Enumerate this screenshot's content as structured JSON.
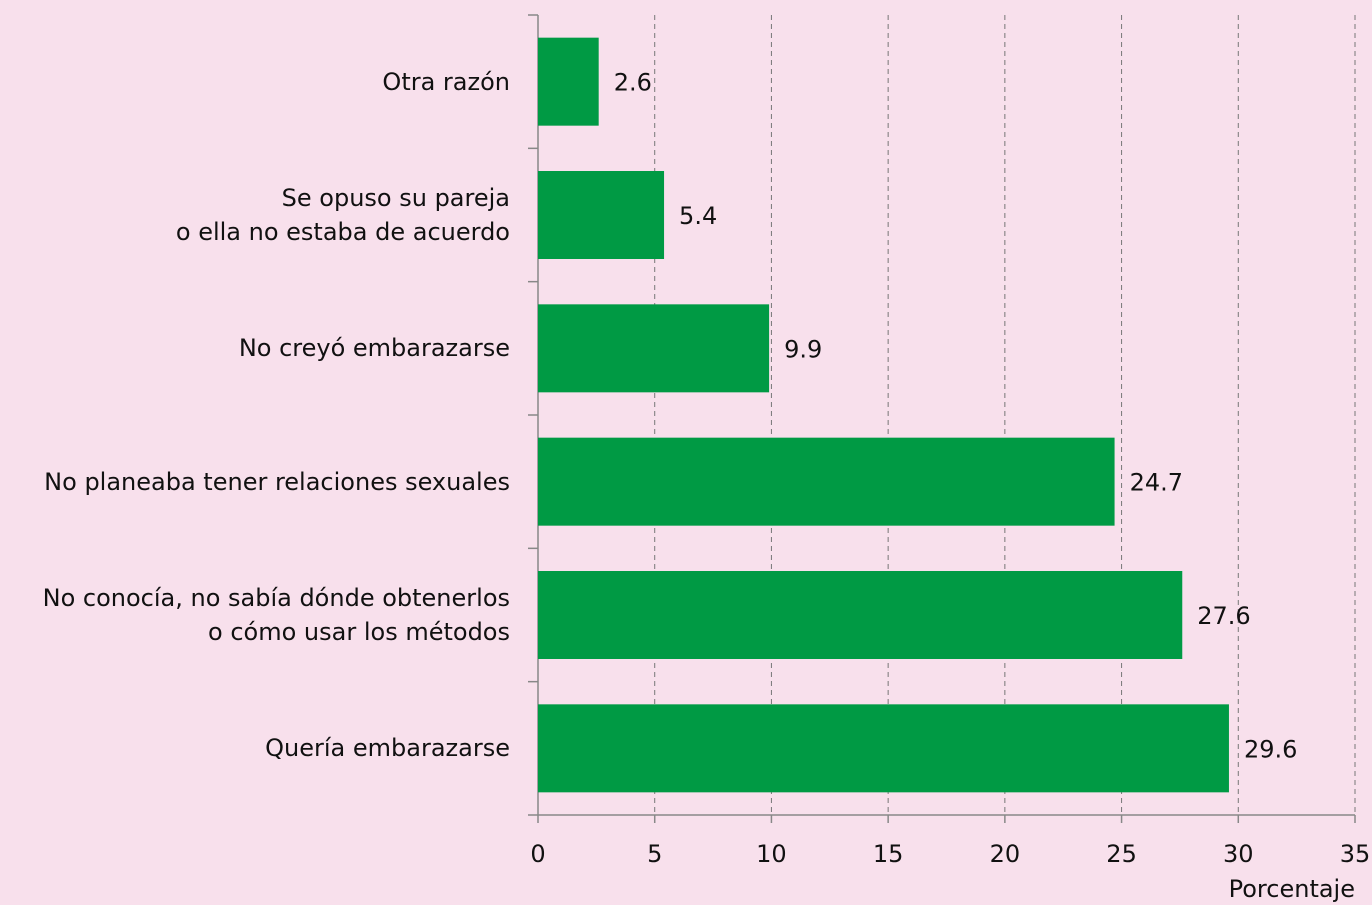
{
  "chart_data": {
    "type": "barh",
    "categories": [
      "Otra razón",
      "Se opuso su pareja\no ella no estaba de acuerdo",
      "No creyó embarazarse",
      "No planeaba tener relaciones sexuales",
      "No conocía, no sabía dónde obtenerlos\no cómo usar los métodos",
      "Quería embarazarse"
    ],
    "values": [
      2.6,
      5.4,
      9.9,
      24.7,
      27.6,
      29.6
    ],
    "color": "#009a44",
    "xlabel": "Porcentaje",
    "xlim": [
      0,
      35
    ],
    "xticks": [
      0,
      5,
      10,
      15,
      20,
      25,
      30,
      35
    ],
    "grid": true
  }
}
